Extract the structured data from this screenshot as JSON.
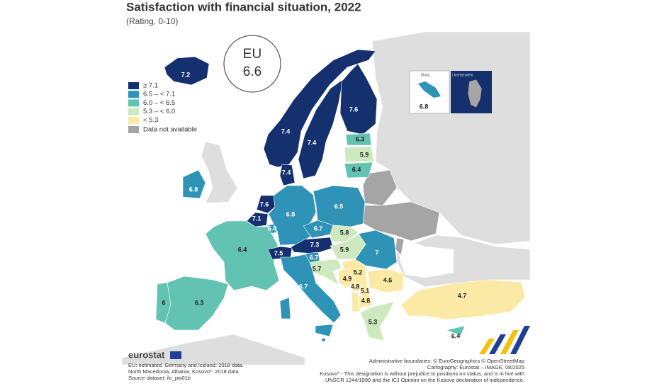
{
  "title": "Satisfaction with financial situation, 2022",
  "subtitle": "(Rating, 0-10)",
  "badge": {
    "label": "EU",
    "value": 6.6
  },
  "legend": [
    {
      "value": 7.1,
      "label": "≥ 7.1",
      "color": "#15306f"
    },
    {
      "value": 6.5,
      "label": "6.5 – < 7.1",
      "color": "#2e93b6"
    },
    {
      "value": 6.0,
      "label": "6.0 – < 6.5",
      "color": "#62c3b3"
    },
    {
      "value": 5.3,
      "label": "5.3 – < 6.0",
      "color": "#cfe9bf"
    },
    {
      "value": 5.3,
      "label": "< 5.3",
      "color": "#fbe9a6"
    },
    {
      "label": "Data not available",
      "color": "#a5a5a5"
    }
  ],
  "regions": {
    "values": [
      7.2,
      7.4,
      7.4,
      7.6,
      6.3,
      5.9,
      6.4,
      7.4,
      6.8,
      7.6,
      7.1,
      6.8,
      6.8,
      6.5,
      6.7,
      5.8,
      7.3,
      5.9,
      7,
      6.4,
      7.5,
      6.7,
      5.7,
      5.2,
      4.9,
      4.8,
      5.1,
      4.6,
      4.8,
      6.7,
      6,
      6.3,
      5.3,
      4.7,
      6.4,
      6.8
    ]
  },
  "insets": [
    {
      "label": "Malta",
      "value": 6.8
    },
    {
      "label": "Liechtenstein"
    }
  ],
  "logo": "eurostat",
  "notes": [
    "EU: estimated. Germany and Iceland: 2018 data.",
    "North Macedonia, Albania, Kosovo*: 2018 data.",
    "Source dataset: ilc_pw01b"
  ],
  "credits": [
    "Administrative boundaries: © EuroGeographics © OpenStreetMap",
    "Cartography: Eurostat – IMAGE, 08/2025",
    "Kosovo* - This designation is without prejudice to positions on status, and is in line with",
    "UNSCR 1244/1999 and the ICJ Opinion on the Kosovo declaration of independence."
  ]
}
